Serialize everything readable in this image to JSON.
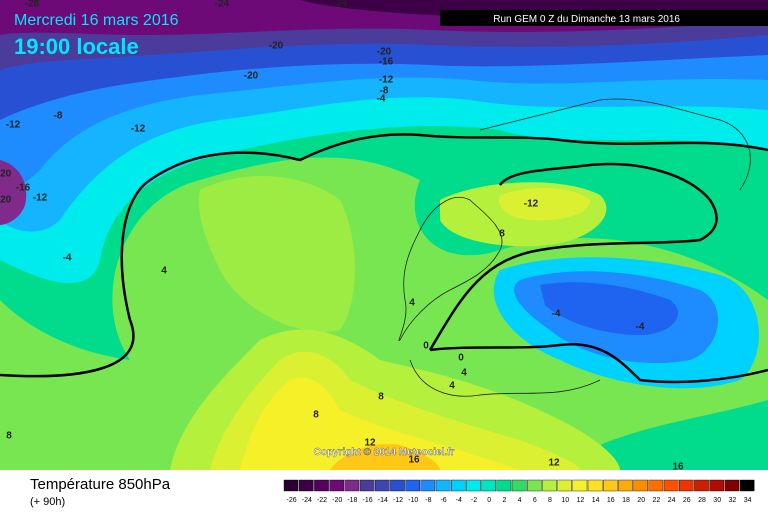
{
  "header": {
    "date": "Mercredi 16 mars 2016",
    "time": "19:00 locale",
    "run": "Run GEM 0 Z du Dimanche 13 mars 2016"
  },
  "footer": {
    "title": "Température 850hPa",
    "lead": "(+ 90h)",
    "copyright": "Copyright © 2014 Meteociel.fr"
  },
  "legend": {
    "values": [
      -26,
      -24,
      -22,
      -20,
      -18,
      -16,
      -14,
      -12,
      -10,
      -8,
      -6,
      -4,
      -2,
      0,
      2,
      4,
      6,
      8,
      10,
      12,
      14,
      16,
      18,
      20,
      22,
      24,
      26,
      28,
      30,
      32,
      34
    ],
    "colors": [
      "#2a0030",
      "#3d0046",
      "#55005f",
      "#6e0a78",
      "#802a8c",
      "#4b3c9c",
      "#3c46b4",
      "#2850d2",
      "#1e64f0",
      "#1e8cff",
      "#14b4ff",
      "#00d2ff",
      "#00ebeb",
      "#00e6be",
      "#00dc8c",
      "#32dc64",
      "#78e650",
      "#b4f03c",
      "#dcf032",
      "#f5f028",
      "#ffe11e",
      "#ffc814",
      "#ffaa0a",
      "#ff8c00",
      "#ff6e00",
      "#ff5000",
      "#f03200",
      "#d21e00",
      "#b40a00",
      "#820000",
      "#000000"
    ]
  },
  "contour_labels": [
    -28,
    -24,
    -24,
    -20,
    -20,
    -16,
    -20,
    -12,
    -8,
    -4,
    -12,
    -8,
    -12,
    -20,
    -16,
    -20,
    -12,
    -4,
    4,
    -12,
    8,
    4,
    0,
    0,
    4,
    4,
    -4,
    -4,
    8,
    8,
    8,
    12,
    16,
    12,
    16
  ]
}
